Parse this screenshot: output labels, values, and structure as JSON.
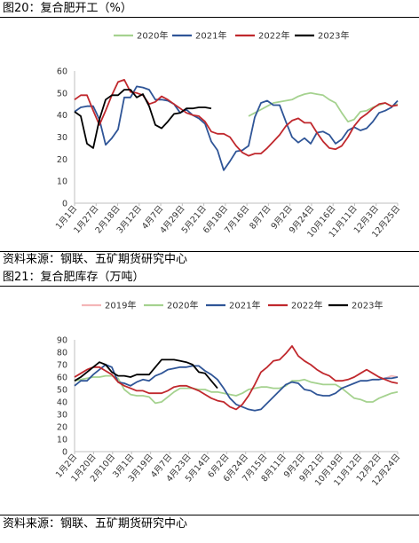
{
  "charts_page": {
    "chart1_title": "图20：复合肥开工（%）",
    "chart1_source": "资料来源：钢联、五矿期货研究中心",
    "chart2_title": "图21：复合肥库存（万吨）",
    "chart2_source": "资料来源：钢联、五矿期货研究中心"
  },
  "chart_data": [
    {
      "type": "line",
      "title": "图20：复合肥开工（%）",
      "x_tick_labels": [
        "1月1日",
        "1月27日",
        "2月18日",
        "3月12日",
        "4月7日",
        "4月29日",
        "5月21日",
        "6月18日",
        "7月16日",
        "8月7日",
        "9月2日",
        "9月24日",
        "10月16日",
        "11月11日",
        "12月3日",
        "12月25日"
      ],
      "x_range": [
        0,
        52
      ],
      "ylim": [
        0,
        60
      ],
      "y_ticks": [
        0,
        10,
        20,
        30,
        40,
        50,
        60
      ],
      "grid": false,
      "legend_position": "top",
      "colors": {
        "2020年": "#a5d28f",
        "2021年": "#2f5597",
        "2022年": "#c0282d",
        "2023年": "#000000"
      },
      "series": [
        {
          "name": "2020年",
          "x": [
            28,
            29,
            30,
            31,
            32,
            33,
            34,
            35,
            36,
            37,
            38,
            39,
            40,
            41,
            42,
            43,
            44,
            45,
            46,
            47,
            48,
            49,
            50,
            51,
            52
          ],
          "values": [
            39.5,
            41,
            42.5,
            44,
            45.5,
            46,
            46.5,
            47,
            48.5,
            49.5,
            50,
            49.5,
            49,
            47,
            45.5,
            41,
            37,
            38,
            41.5,
            42,
            43.5,
            44.5,
            45.5,
            44,
            45
          ]
        },
        {
          "name": "2021年",
          "x": [
            0,
            1,
            2,
            3,
            4,
            5,
            6,
            7,
            8,
            9,
            10,
            11,
            12,
            13,
            14,
            15,
            16,
            17,
            18,
            19,
            20,
            21,
            22,
            23,
            24,
            25,
            26,
            27,
            28,
            29,
            30,
            31,
            32,
            33,
            34,
            35,
            36,
            37,
            38,
            39,
            40,
            41,
            42,
            43,
            44,
            45,
            46,
            47,
            48,
            49,
            50,
            51,
            52
          ],
          "values": [
            41.5,
            43.5,
            44,
            44,
            38,
            26.5,
            29.5,
            33.5,
            48,
            48,
            53,
            52.5,
            51.5,
            47,
            47,
            46.5,
            45,
            41,
            42.5,
            40,
            38.5,
            36,
            28,
            24,
            15,
            19,
            23.5,
            24,
            26,
            39,
            45.5,
            46.5,
            44.5,
            44.5,
            37,
            30,
            27.5,
            29.5,
            27,
            32,
            32.5,
            31,
            27,
            29,
            33,
            34.5,
            33,
            34,
            37,
            41,
            42,
            43.5,
            46.5
          ]
        },
        {
          "name": "2022年",
          "x": [
            0,
            1,
            2,
            3,
            4,
            5,
            6,
            7,
            8,
            9,
            10,
            11,
            12,
            13,
            14,
            15,
            16,
            17,
            18,
            19,
            20,
            21,
            22,
            23,
            24,
            25,
            26,
            27,
            28,
            29,
            30,
            31,
            32,
            33,
            34,
            35,
            36,
            37,
            38,
            39,
            40,
            41,
            42,
            43,
            44,
            45,
            46,
            47,
            48,
            49,
            50,
            51,
            52
          ],
          "values": [
            47,
            49,
            49,
            42,
            35.5,
            42,
            49,
            55,
            56,
            50.5,
            50,
            49,
            45,
            46,
            48.5,
            47,
            45,
            43,
            41,
            40,
            39.5,
            37,
            32.5,
            31.5,
            31.5,
            30,
            26,
            23,
            21.5,
            22.5,
            22.5,
            25,
            28,
            31,
            35,
            37.5,
            38.5,
            36.5,
            36.5,
            32,
            28,
            25,
            24.5,
            26,
            30,
            35,
            38.5,
            40.5,
            43,
            45,
            45.5,
            44,
            44.5
          ]
        },
        {
          "name": "2023年",
          "x": [
            0,
            1,
            2,
            3,
            4,
            5,
            6,
            7,
            8,
            9,
            10,
            11,
            12,
            13,
            14,
            15,
            16,
            17,
            18,
            19,
            20,
            21,
            22
          ],
          "values": [
            41.5,
            39.5,
            27,
            25,
            38,
            47,
            49,
            49,
            51.5,
            51.5,
            48,
            49.5,
            44,
            35.5,
            34,
            37,
            40.5,
            41,
            43,
            43,
            43.5,
            43.5,
            43
          ]
        }
      ]
    },
    {
      "type": "line",
      "title": "图21：复合肥库存（万吨）",
      "x_tick_labels": [
        "1月2日",
        "1月20日",
        "2月10日",
        "3月1日",
        "3月19日",
        "4月7日",
        "4月23日",
        "5月14日",
        "6月2日",
        "6月24日",
        "7月15日",
        "8月11日",
        "9月2日",
        "9月21日",
        "10月19日",
        "11月12日",
        "12月2日",
        "12月24日"
      ],
      "x_range": [
        0,
        52
      ],
      "ylim": [
        0,
        90
      ],
      "y_ticks": [
        0,
        10,
        20,
        30,
        40,
        50,
        60,
        70,
        80,
        90
      ],
      "grid": false,
      "legend_position": "top",
      "colors": {
        "2019年": "#f4b6b8",
        "2020年": "#a5d28f",
        "2021年": "#2f5597",
        "2022年": "#c0282d",
        "2023年": "#000000"
      },
      "series": [
        {
          "name": "2019年",
          "x": [
            50,
            51,
            52
          ],
          "values": [
            59,
            61,
            60
          ]
        },
        {
          "name": "2020年",
          "x": [
            0,
            1,
            2,
            3,
            4,
            5,
            6,
            7,
            8,
            9,
            10,
            11,
            12,
            13,
            14,
            15,
            16,
            17,
            18,
            19,
            20,
            21,
            22,
            23,
            24,
            25,
            26,
            27,
            28,
            29,
            30,
            31,
            32,
            33,
            34,
            35,
            36,
            37,
            38,
            39,
            40,
            41,
            42,
            43,
            44,
            45,
            46,
            47,
            48,
            49,
            50,
            51,
            52
          ],
          "values": [
            57,
            58,
            59,
            60,
            60,
            61,
            61,
            59,
            50,
            46,
            45,
            45,
            44,
            39,
            40,
            44,
            48,
            51,
            51,
            51,
            50,
            50,
            48,
            48,
            47,
            46,
            45,
            47,
            50,
            51,
            52,
            52,
            51,
            51,
            53,
            57,
            57,
            58,
            56,
            55,
            54,
            54,
            54,
            51,
            47,
            43,
            42,
            40,
            40,
            43,
            45,
            47,
            48
          ]
        },
        {
          "name": "2021年",
          "x": [
            0,
            1,
            2,
            3,
            4,
            5,
            6,
            7,
            8,
            9,
            10,
            11,
            12,
            13,
            14,
            15,
            16,
            17,
            18,
            19,
            20,
            21,
            22,
            23,
            24,
            25,
            26,
            27,
            28,
            29,
            30,
            31,
            32,
            33,
            34,
            35,
            36,
            37,
            38,
            39,
            40,
            41,
            42,
            43,
            44,
            45,
            46,
            47,
            48,
            49,
            50,
            51,
            52
          ],
          "values": [
            53,
            57,
            57,
            62,
            66,
            70,
            68,
            56,
            55,
            53,
            56,
            58,
            57,
            61,
            63,
            66,
            67,
            68,
            68,
            69,
            69,
            65,
            62,
            58,
            51,
            43,
            38,
            36,
            34,
            33,
            34,
            39,
            44,
            49,
            54,
            56,
            55,
            50,
            49,
            46,
            45,
            45,
            47,
            51,
            53,
            55,
            57,
            57,
            58,
            58,
            59,
            59,
            60
          ]
        },
        {
          "name": "2022年",
          "x": [
            0,
            1,
            2,
            3,
            4,
            5,
            6,
            7,
            8,
            9,
            10,
            11,
            12,
            13,
            14,
            15,
            16,
            17,
            18,
            19,
            20,
            21,
            22,
            23,
            24,
            25,
            26,
            27,
            28,
            29,
            30,
            31,
            32,
            33,
            34,
            35,
            36,
            37,
            38,
            39,
            40,
            41,
            42,
            43,
            44,
            45,
            46,
            47,
            48,
            49,
            50,
            51,
            52
          ],
          "values": [
            60,
            63,
            66,
            68,
            68,
            65,
            62,
            56,
            53,
            51,
            49,
            49,
            47,
            47,
            47,
            49,
            52,
            53,
            53,
            51,
            49,
            46,
            43,
            41,
            40,
            36,
            34,
            38,
            45,
            54,
            64,
            68,
            73,
            74,
            79,
            85,
            77,
            73,
            70,
            66,
            63,
            61,
            57,
            57,
            58,
            60,
            63,
            66,
            63,
            60,
            58,
            56,
            55
          ]
        },
        {
          "name": "2023年",
          "x": [
            0,
            1,
            2,
            3,
            4,
            5,
            6,
            7,
            8,
            9,
            10,
            11,
            12,
            13,
            14,
            15,
            16,
            17,
            18,
            19,
            20,
            21,
            22,
            23
          ],
          "values": [
            57,
            60,
            64,
            68,
            72,
            70,
            64,
            61,
            61,
            60,
            62,
            62,
            62,
            68,
            74,
            74,
            74,
            73,
            72,
            70,
            64,
            63,
            57,
            51
          ]
        }
      ]
    }
  ]
}
